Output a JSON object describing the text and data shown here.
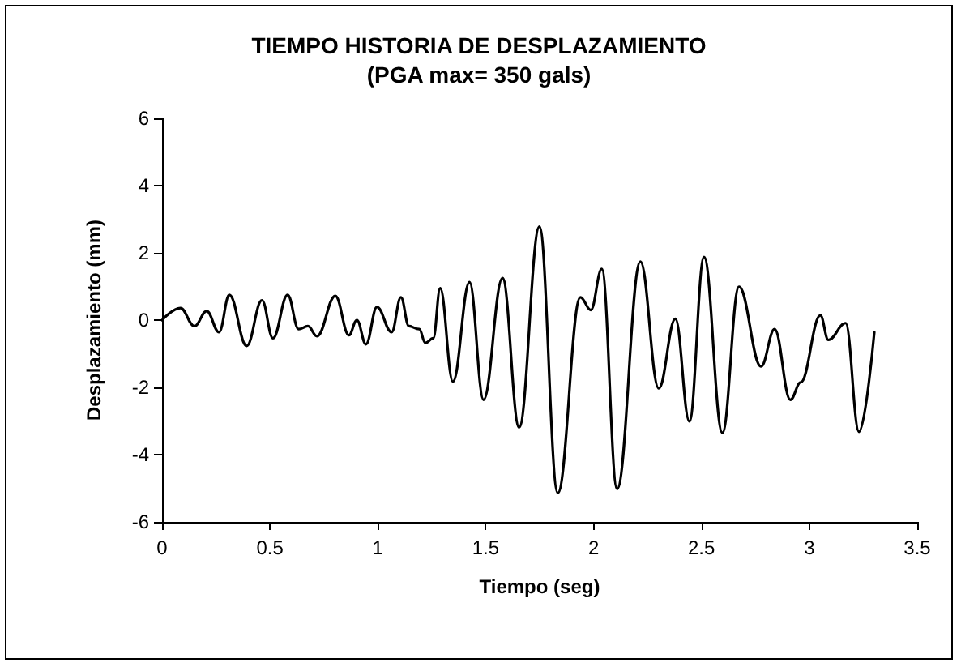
{
  "chart_data": {
    "type": "line",
    "title": "TIEMPO HISTORIA DE DESPLAZAMIENTO",
    "subtitle": "(PGA max= 350 gals)",
    "xlabel": "Tiempo (seg)",
    "ylabel": "Desplazamiento (mm)",
    "x": [
      0,
      0.085,
      0.15,
      0.207,
      0.264,
      0.312,
      0.392,
      0.463,
      0.514,
      0.582,
      0.633,
      0.676,
      0.718,
      0.803,
      0.866,
      0.903,
      0.945,
      0.996,
      1.064,
      1.107,
      1.144,
      1.192,
      1.22,
      1.257,
      1.289,
      1.348,
      1.425,
      1.49,
      1.578,
      1.655,
      1.749,
      1.834,
      1.939,
      1.987,
      2.038,
      2.109,
      2.217,
      2.302,
      2.379,
      2.444,
      2.512,
      2.597,
      2.674,
      2.776,
      2.839,
      2.912,
      2.96,
      3.051,
      3.088,
      3.168,
      3.23,
      3.301
    ],
    "series": [
      {
        "color": "#000000",
        "values": [
          0,
          0.36,
          -0.18,
          0.27,
          -0.36,
          0.75,
          -0.77,
          0.59,
          -0.54,
          0.75,
          -0.27,
          -0.18,
          -0.48,
          0.72,
          -0.45,
          0,
          -0.72,
          0.39,
          -0.36,
          0.68,
          -0.18,
          -0.27,
          -0.68,
          -0.54,
          0.95,
          -1.83,
          1.13,
          -2.37,
          1.25,
          -3.19,
          2.78,
          -5.14,
          0.68,
          0.3,
          1.52,
          -5.02,
          1.74,
          -2.03,
          0.04,
          -3.01,
          1.88,
          -3.35,
          0.99,
          -1.38,
          -0.27,
          -2.37,
          -1.85,
          0.14,
          -0.59,
          -0.09,
          -3.32,
          -0.36
        ]
      }
    ],
    "xlim": [
      0,
      3.5
    ],
    "xticks": [
      0,
      0.5,
      1,
      1.5,
      2,
      2.5,
      3,
      3.5
    ],
    "ylim": [
      -6,
      6
    ],
    "yticks": [
      -6,
      -4,
      -2,
      0,
      2,
      4,
      6
    ],
    "marker": "none",
    "line_style": "solid"
  }
}
